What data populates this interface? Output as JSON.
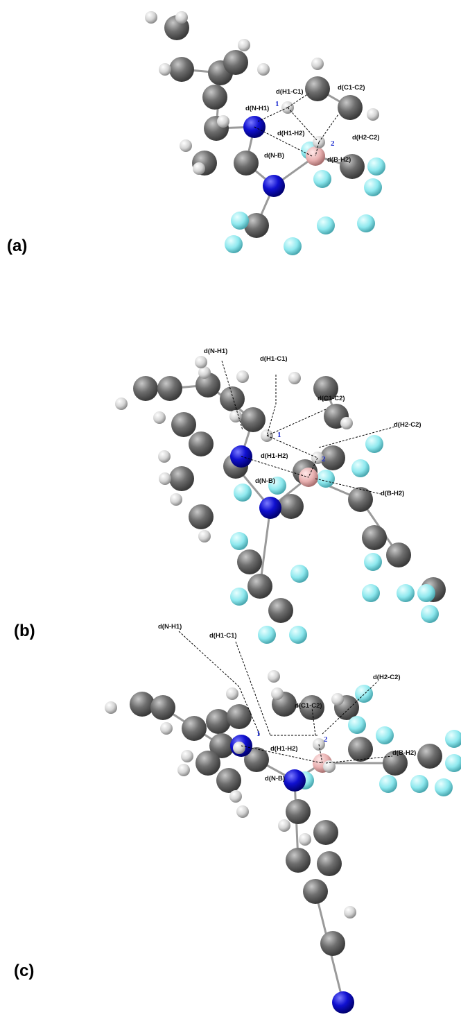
{
  "panels": [
    {
      "label": "(a)",
      "markers": [
        "1",
        "2"
      ],
      "annotations": [
        "d(H1-C1)",
        "d(C1-C2)",
        "d(N-H1)",
        "d(H1-H2)",
        "d(H2-C2)",
        "d(N-B)",
        "d(B-H2)"
      ]
    },
    {
      "label": "(b)",
      "markers": [
        "1",
        "2"
      ],
      "annotations": [
        "d(N-H1)",
        "d(H1-C1)",
        "d(C1-C2)",
        "d(H2-C2)",
        "d(H1-H2)",
        "d(N-B)",
        "d(B-H2)"
      ]
    },
    {
      "label": "(c)",
      "markers": [
        "1",
        "2"
      ],
      "annotations": [
        "d(N-H1)",
        "d(H1-C1)",
        "d(H2-C2)",
        "d(C1-C2)",
        "d(H1-H2)",
        "d(B-H2)",
        "d(N-B)"
      ]
    }
  ]
}
